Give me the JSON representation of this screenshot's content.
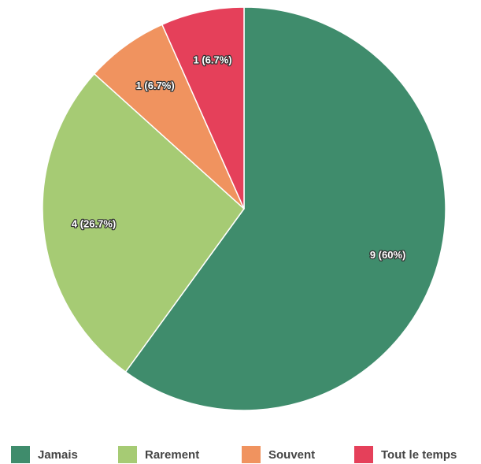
{
  "chart_data": {
    "type": "pie",
    "categories": [
      "Jamais",
      "Rarement",
      "Souvent",
      "Tout le temps"
    ],
    "values": [
      9,
      4,
      1,
      1
    ],
    "value_labels": [
      "9 (60%)",
      "4 (26.7%)",
      "1 (6.7%)",
      "1 (6.7%)"
    ],
    "colors": [
      "#3f8c6c",
      "#a6cb74",
      "#f0935f",
      "#e5405a"
    ],
    "legend": "bottom"
  }
}
